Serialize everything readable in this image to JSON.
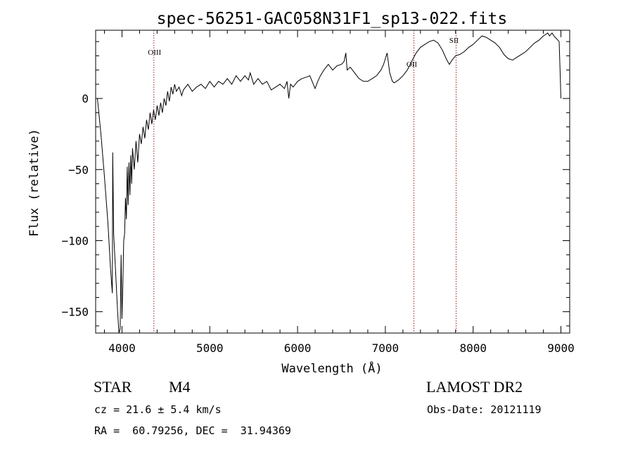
{
  "chart_data": {
    "type": "line",
    "title": "spec-56251-GAC058N31F1_sp13-022.fits",
    "xlabel": "Wavelength (Å)",
    "ylabel": "Flux (relative)",
    "xlim": [
      3700,
      9100
    ],
    "ylim": [
      -165,
      48
    ],
    "xticks": [
      4000,
      5000,
      6000,
      7000,
      8000,
      9000
    ],
    "xtick_labels": [
      "4000",
      "5000",
      "6000",
      "7000",
      "8000",
      "9000"
    ],
    "yticks": [
      -150,
      -100,
      -50,
      0
    ],
    "ytick_labels": [
      "−150",
      "−100",
      "−50",
      "0"
    ],
    "grid": false,
    "series": [
      {
        "points": [
          [
            3720,
            0
          ],
          [
            3760,
            -25
          ],
          [
            3800,
            -55
          ],
          [
            3840,
            -88
          ],
          [
            3870,
            -120
          ],
          [
            3890,
            -137
          ],
          [
            3895,
            -38
          ],
          [
            3905,
            -95
          ],
          [
            3930,
            -125
          ],
          [
            3950,
            -150
          ],
          [
            3965,
            -165
          ],
          [
            3980,
            -162
          ],
          [
            3990,
            -110
          ],
          [
            4000,
            -155
          ],
          [
            4010,
            -130
          ],
          [
            4020,
            -100
          ],
          [
            4030,
            -95
          ],
          [
            4040,
            -70
          ],
          [
            4050,
            -85
          ],
          [
            4060,
            -48
          ],
          [
            4070,
            -75
          ],
          [
            4080,
            -45
          ],
          [
            4090,
            -68
          ],
          [
            4100,
            -40
          ],
          [
            4110,
            -60
          ],
          [
            4120,
            -35
          ],
          [
            4140,
            -50
          ],
          [
            4160,
            -30
          ],
          [
            4180,
            -45
          ],
          [
            4200,
            -25
          ],
          [
            4220,
            -32
          ],
          [
            4240,
            -20
          ],
          [
            4260,
            -28
          ],
          [
            4280,
            -15
          ],
          [
            4300,
            -22
          ],
          [
            4320,
            -10
          ],
          [
            4340,
            -18
          ],
          [
            4360,
            -8
          ],
          [
            4380,
            -15
          ],
          [
            4400,
            -5
          ],
          [
            4420,
            -12
          ],
          [
            4440,
            -3
          ],
          [
            4460,
            -10
          ],
          [
            4480,
            0
          ],
          [
            4500,
            -5
          ],
          [
            4520,
            5
          ],
          [
            4540,
            -2
          ],
          [
            4560,
            8
          ],
          [
            4580,
            3
          ],
          [
            4600,
            10
          ],
          [
            4620,
            5
          ],
          [
            4650,
            8
          ],
          [
            4680,
            2
          ],
          [
            4700,
            6
          ],
          [
            4750,
            10
          ],
          [
            4800,
            5
          ],
          [
            4850,
            8
          ],
          [
            4900,
            10
          ],
          [
            4950,
            7
          ],
          [
            5000,
            12
          ],
          [
            5050,
            8
          ],
          [
            5100,
            12
          ],
          [
            5150,
            10
          ],
          [
            5200,
            14
          ],
          [
            5250,
            10
          ],
          [
            5300,
            16
          ],
          [
            5350,
            12
          ],
          [
            5400,
            16
          ],
          [
            5440,
            13
          ],
          [
            5460,
            18
          ],
          [
            5500,
            10
          ],
          [
            5550,
            14
          ],
          [
            5600,
            10
          ],
          [
            5650,
            12
          ],
          [
            5700,
            6
          ],
          [
            5750,
            8
          ],
          [
            5800,
            10
          ],
          [
            5850,
            7
          ],
          [
            5880,
            12
          ],
          [
            5900,
            0
          ],
          [
            5920,
            10
          ],
          [
            5950,
            8
          ],
          [
            6000,
            12
          ],
          [
            6050,
            14
          ],
          [
            6100,
            15
          ],
          [
            6140,
            16
          ],
          [
            6180,
            10
          ],
          [
            6200,
            7
          ],
          [
            6230,
            12
          ],
          [
            6260,
            16
          ],
          [
            6300,
            20
          ],
          [
            6350,
            24
          ],
          [
            6400,
            20
          ],
          [
            6450,
            23
          ],
          [
            6500,
            24
          ],
          [
            6530,
            26
          ],
          [
            6550,
            32
          ],
          [
            6565,
            20
          ],
          [
            6600,
            22
          ],
          [
            6650,
            18
          ],
          [
            6700,
            14
          ],
          [
            6750,
            12
          ],
          [
            6800,
            12
          ],
          [
            6850,
            14
          ],
          [
            6900,
            16
          ],
          [
            6950,
            20
          ],
          [
            6980,
            24
          ],
          [
            7020,
            32
          ],
          [
            7050,
            18
          ],
          [
            7080,
            12
          ],
          [
            7100,
            11
          ],
          [
            7150,
            13
          ],
          [
            7200,
            16
          ],
          [
            7250,
            20
          ],
          [
            7300,
            26
          ],
          [
            7350,
            32
          ],
          [
            7400,
            36
          ],
          [
            7450,
            38
          ],
          [
            7500,
            40
          ],
          [
            7550,
            41
          ],
          [
            7600,
            39
          ],
          [
            7650,
            34
          ],
          [
            7700,
            27
          ],
          [
            7730,
            24
          ],
          [
            7760,
            27
          ],
          [
            7800,
            30
          ],
          [
            7850,
            31
          ],
          [
            7900,
            33
          ],
          [
            7950,
            36
          ],
          [
            8000,
            38
          ],
          [
            8050,
            41
          ],
          [
            8100,
            44
          ],
          [
            8150,
            43
          ],
          [
            8200,
            41
          ],
          [
            8250,
            39
          ],
          [
            8300,
            36
          ],
          [
            8350,
            31
          ],
          [
            8400,
            28
          ],
          [
            8450,
            27
          ],
          [
            8500,
            29
          ],
          [
            8550,
            31
          ],
          [
            8600,
            33
          ],
          [
            8650,
            36
          ],
          [
            8700,
            39
          ],
          [
            8750,
            41
          ],
          [
            8800,
            44
          ],
          [
            8850,
            46
          ],
          [
            8870,
            44
          ],
          [
            8900,
            46
          ],
          [
            8920,
            44
          ],
          [
            8950,
            42
          ],
          [
            8980,
            40
          ],
          [
            8990,
            20
          ],
          [
            9000,
            0
          ]
        ]
      }
    ],
    "lines": [
      {
        "label": "OIII",
        "x": 4363
      },
      {
        "label": "OII",
        "x": 7325
      },
      {
        "label": "SII",
        "x": 7806
      }
    ]
  },
  "info": {
    "class": "STAR",
    "subclass": "M4",
    "survey": "LAMOST DR2",
    "cz": "cz = 21.6 ± 5.4 km/s",
    "obs_date": "Obs-Date: 20121119",
    "coords": "RA =  60.79256, DEC =  31.94369"
  }
}
